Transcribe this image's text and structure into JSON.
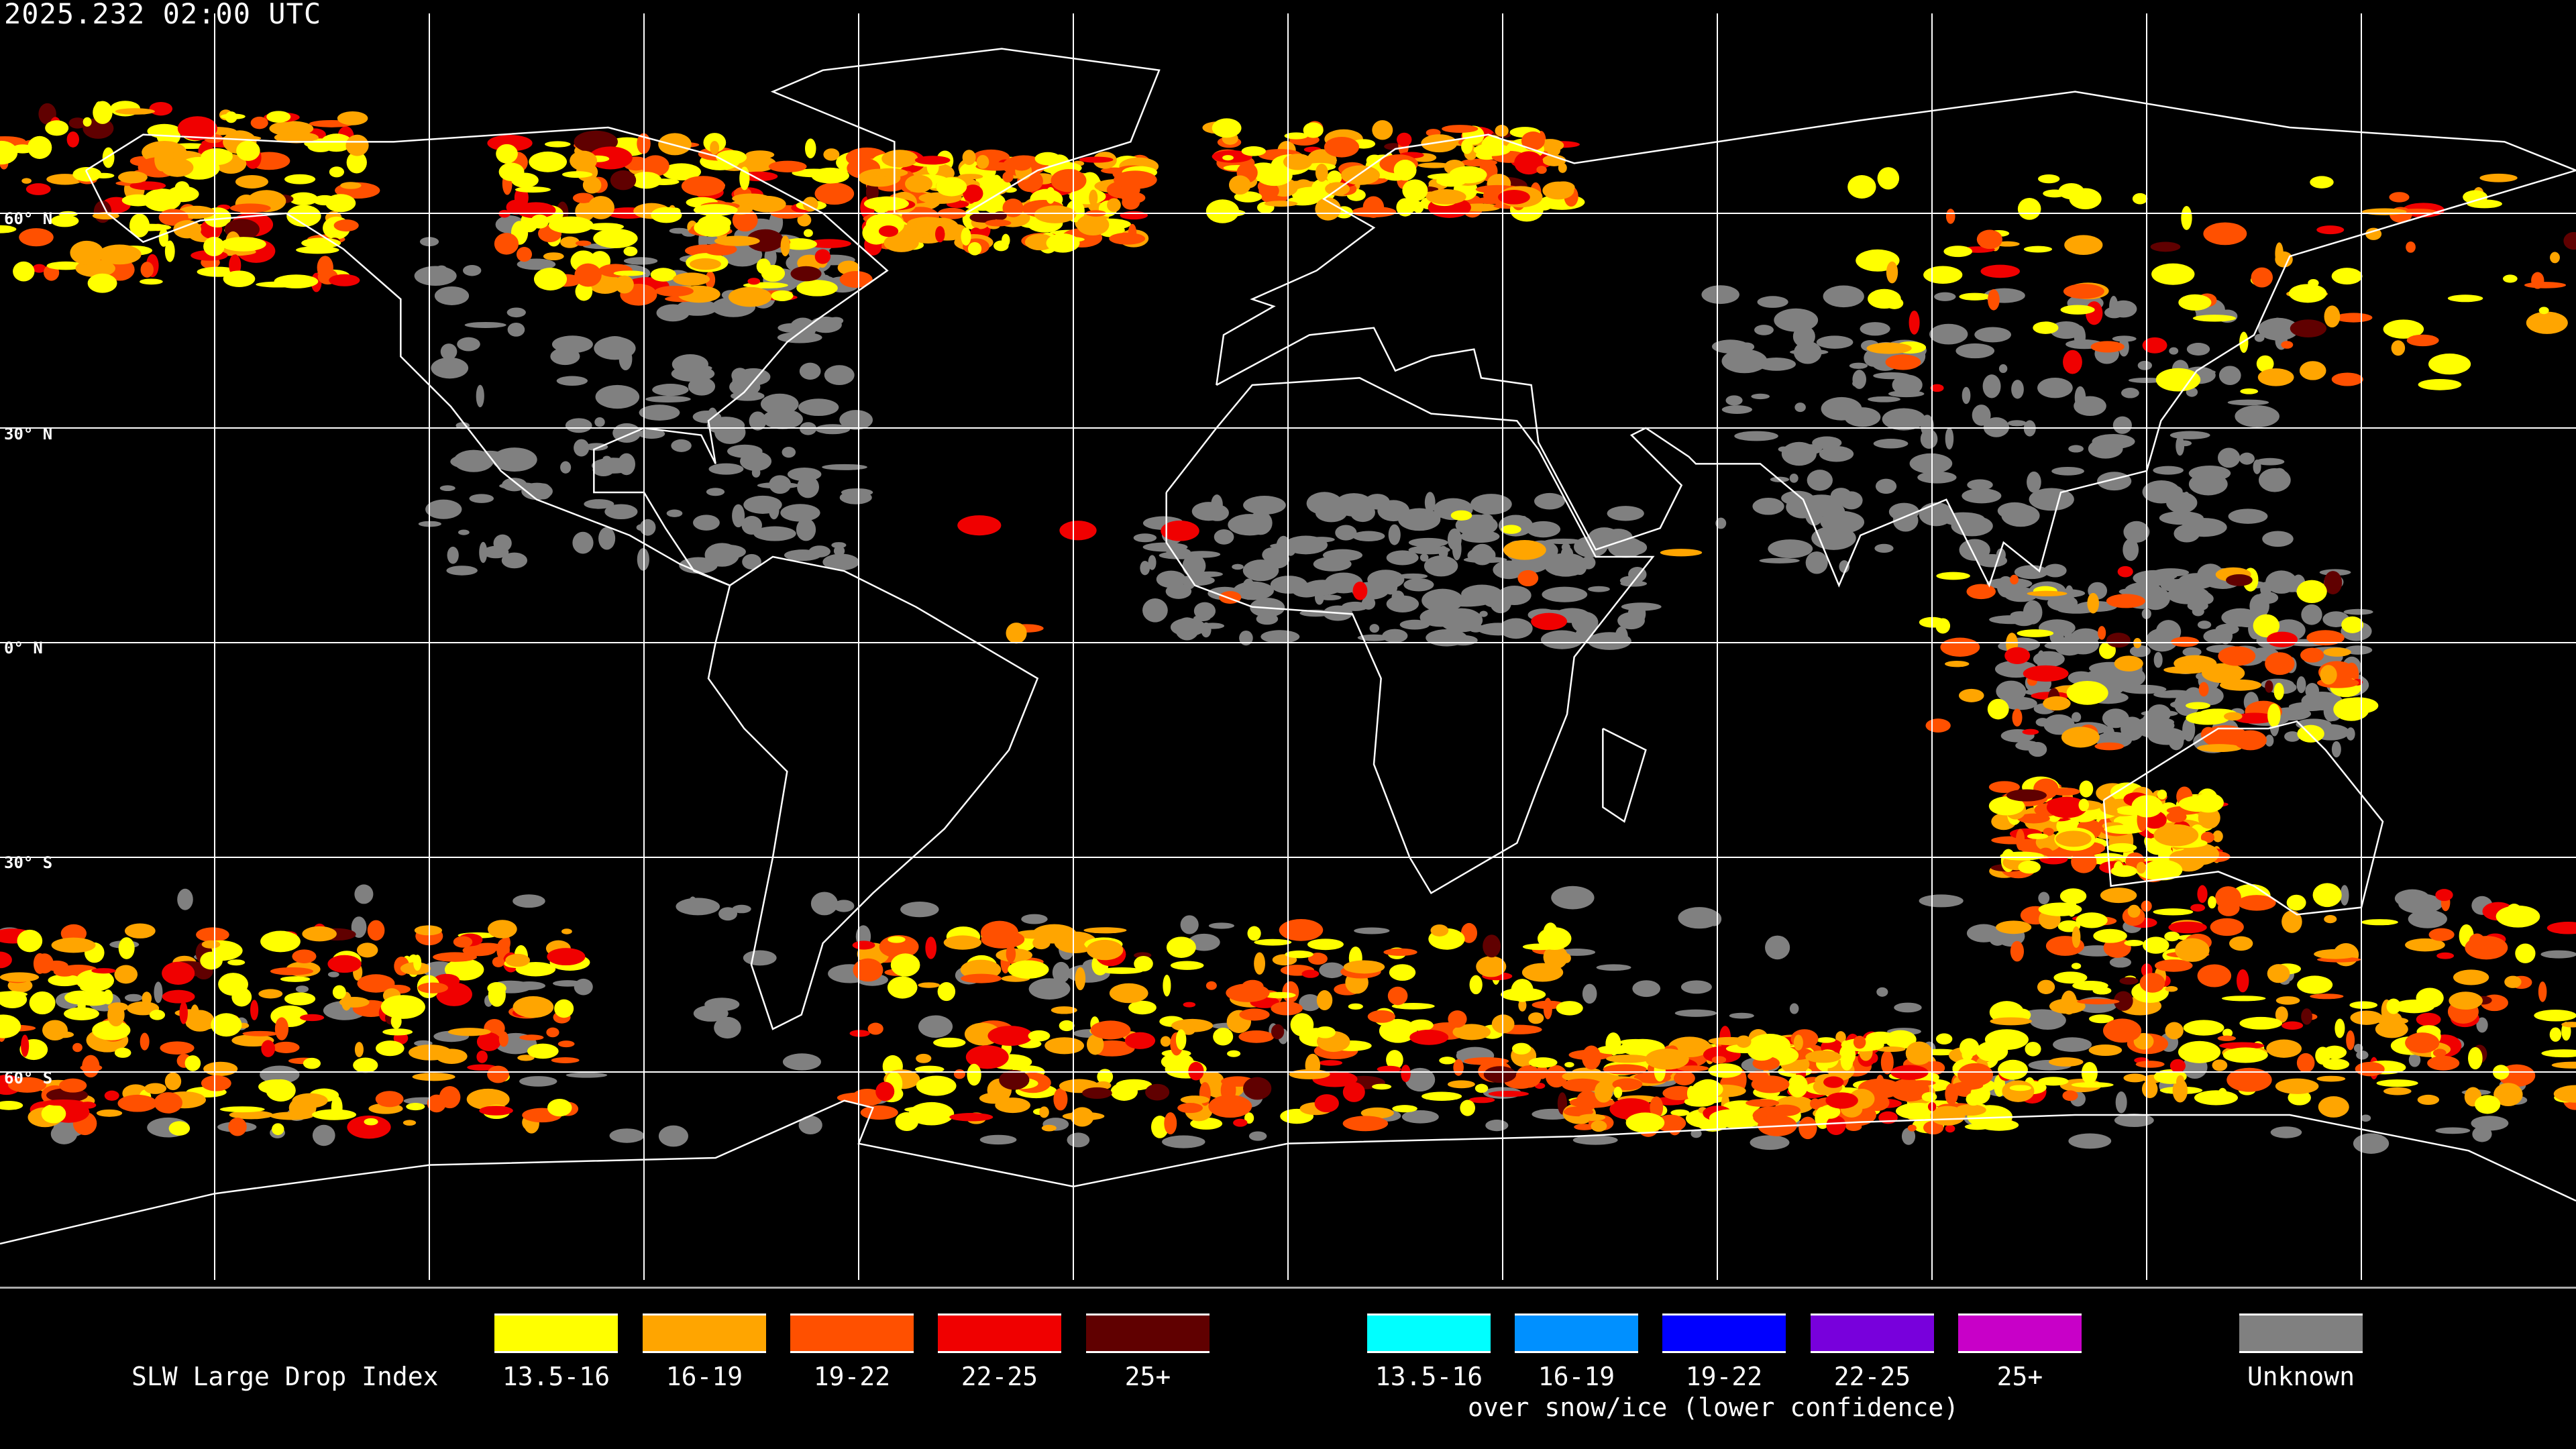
{
  "title": "2025.232 02:00 UTC",
  "latitude_labels": [
    "60° N",
    "30° N",
    "0° N",
    "30° S",
    "60° S"
  ],
  "legend": {
    "title": "SLW Large Drop Index",
    "items": [
      {
        "label": "13.5-16",
        "color": "#ffff00"
      },
      {
        "label": "16-19",
        "color": "#ffa500"
      },
      {
        "label": "19-22",
        "color": "#ff5000"
      },
      {
        "label": "22-25",
        "color": "#f00000"
      },
      {
        "label": "25+",
        "color": "#600000"
      }
    ],
    "snow_items": [
      {
        "label": "13.5-16",
        "color": "#00ffff"
      },
      {
        "label": "16-19",
        "color": "#0090ff"
      },
      {
        "label": "19-22",
        "color": "#0000ff"
      },
      {
        "label": "22-25",
        "color": "#7800dc"
      },
      {
        "label": "25+",
        "color": "#c800c8"
      }
    ],
    "snow_note": "over snow/ice (lower confidence)",
    "unknown": {
      "label": "Unknown",
      "color": "#808080"
    }
  }
}
